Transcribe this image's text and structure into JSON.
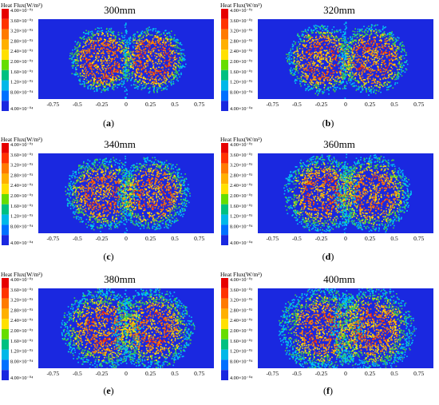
{
  "colorbar": {
    "title": "Heat Flux(W/m²)",
    "ticks": [
      "4.00×10⁻⁰³",
      "3.60×10⁻⁰³",
      "3.20×10⁻⁰³",
      "2.80×10⁻⁰³",
      "2.40×10⁻⁰³",
      "2.00×10⁻⁰³",
      "1.60×10⁻⁰³",
      "1.20×10⁻⁰³",
      "8.00×10⁻⁰⁴",
      "4.00×10⁻⁰⁴"
    ],
    "colors": [
      "#e60000",
      "#ff3300",
      "#ff7a00",
      "#ffb000",
      "#ffe000",
      "#66dd00",
      "#00c080",
      "#00b8e8",
      "#0070ff",
      "#1a28e0"
    ]
  },
  "x_ticks": [
    "-0.75",
    "-0.5",
    "-0.25",
    "0",
    "0.25",
    "0.5",
    "0.75"
  ],
  "colors": {
    "background": "#1a28e0",
    "cyan": "#00c8f0",
    "green": "#40d040",
    "yellow": "#ffe000",
    "orange": "#ff8000",
    "red": "#ff2000"
  },
  "chart_data": [
    {
      "type": "heatmap",
      "title": "300mm",
      "caption": "(a)",
      "x_range": [
        -0.9,
        0.9
      ],
      "x_ticks": [
        -0.75,
        -0.5,
        -0.25,
        0,
        0.25,
        0.5,
        0.75
      ],
      "value_range": [
        0.0004,
        0.004
      ],
      "spot_centers": [
        -0.25,
        0.27
      ],
      "spot_radius": 0.33,
      "core_radius": 0.2
    },
    {
      "type": "heatmap",
      "title": "320mm",
      "caption": "(b)",
      "x_range": [
        -0.9,
        0.9
      ],
      "x_ticks": [
        -0.75,
        -0.5,
        -0.25,
        0,
        0.25,
        0.5,
        0.75
      ],
      "value_range": [
        0.0004,
        0.004
      ],
      "spot_centers": [
        -0.25,
        0.27
      ],
      "spot_radius": 0.35,
      "core_radius": 0.2
    },
    {
      "type": "heatmap",
      "title": "340mm",
      "caption": "(c)",
      "x_range": [
        -0.9,
        0.9
      ],
      "x_ticks": [
        -0.75,
        -0.5,
        -0.25,
        0,
        0.25,
        0.5,
        0.75
      ],
      "value_range": [
        0.0004,
        0.004
      ],
      "spot_centers": [
        -0.25,
        0.27
      ],
      "spot_radius": 0.37,
      "core_radius": 0.19
    },
    {
      "type": "heatmap",
      "title": "360mm",
      "caption": "(d)",
      "x_range": [
        -0.9,
        0.9
      ],
      "x_ticks": [
        -0.75,
        -0.5,
        -0.25,
        0,
        0.25,
        0.5,
        0.75
      ],
      "value_range": [
        0.0004,
        0.004
      ],
      "spot_centers": [
        -0.25,
        0.27
      ],
      "spot_radius": 0.39,
      "core_radius": 0.19
    },
    {
      "type": "heatmap",
      "title": "380mm",
      "caption": "(e)",
      "x_range": [
        -0.9,
        0.9
      ],
      "x_ticks": [
        -0.75,
        -0.5,
        -0.25,
        0,
        0.25,
        0.5,
        0.75
      ],
      "value_range": [
        0.0004,
        0.004
      ],
      "spot_centers": [
        -0.25,
        0.27
      ],
      "spot_radius": 0.41,
      "core_radius": 0.18
    },
    {
      "type": "heatmap",
      "title": "400mm",
      "caption": "(f)",
      "x_range": [
        -0.9,
        0.9
      ],
      "x_ticks": [
        -0.75,
        -0.5,
        -0.25,
        0,
        0.25,
        0.5,
        0.75
      ],
      "value_range": [
        0.0004,
        0.004
      ],
      "spot_centers": [
        -0.25,
        0.27
      ],
      "spot_radius": 0.43,
      "core_radius": 0.18
    }
  ]
}
